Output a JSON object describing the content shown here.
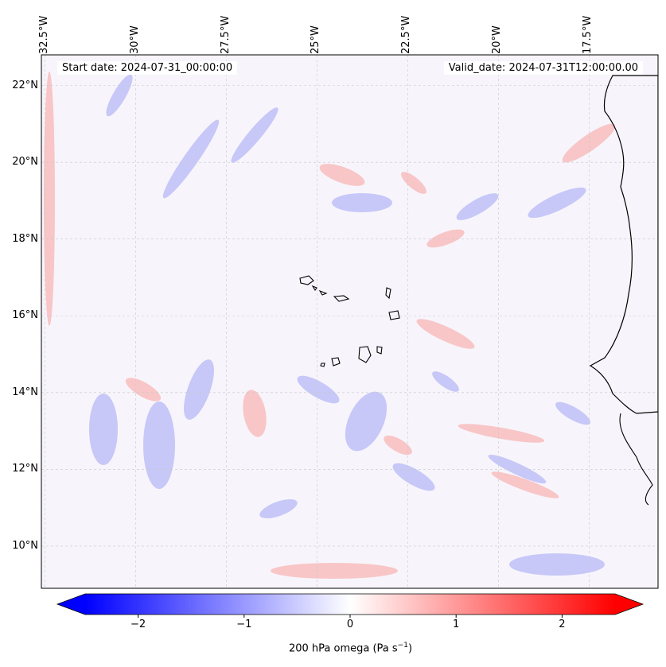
{
  "map": {
    "region": "West Africa / Cape Verde",
    "start_date_text": "Start date: 2024-07-31_00:00:00",
    "valid_date_text": "Valid_date: 2024-07-31T12:00:00.00",
    "lon_ticks": [
      {
        "value": -32.5,
        "label": "32.5°W"
      },
      {
        "value": -30.0,
        "label": "30°W"
      },
      {
        "value": -27.5,
        "label": "27.5°W"
      },
      {
        "value": -25.0,
        "label": "25°W"
      },
      {
        "value": -22.5,
        "label": "22.5°W"
      },
      {
        "value": -20.0,
        "label": "20°W"
      },
      {
        "value": -17.5,
        "label": "17.5°W"
      }
    ],
    "lat_ticks": [
      {
        "value": 22,
        "label": "22°N"
      },
      {
        "value": 20,
        "label": "20°N"
      },
      {
        "value": 18,
        "label": "18°N"
      },
      {
        "value": 16,
        "label": "16°N"
      },
      {
        "value": 14,
        "label": "14°N"
      },
      {
        "value": 12,
        "label": "12°N"
      },
      {
        "value": 10,
        "label": "10°N"
      }
    ],
    "lon_range": [
      -32.6,
      -15.6
    ],
    "lat_range": [
      8.9,
      22.8
    ]
  },
  "colorbar": {
    "label_prefix": "200 hPa omega (Pa s",
    "label_exp": "−1",
    "label_suffix": ")",
    "ticks": [
      {
        "value": -2,
        "label": "−2"
      },
      {
        "value": -1,
        "label": "−1"
      },
      {
        "value": 0,
        "label": "0"
      },
      {
        "value": 1,
        "label": "1"
      },
      {
        "value": 2,
        "label": "2"
      }
    ],
    "range": [
      -2.5,
      2.5
    ],
    "colormap": "bwr",
    "color_low": "#0000ff",
    "color_mid": "#ffffff",
    "color_high": "#ff0000"
  }
}
